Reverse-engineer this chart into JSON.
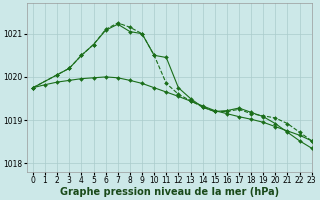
{
  "xlabel": "Graphe pression niveau de la mer (hPa)",
  "bg_color": "#cce8e8",
  "grid_color": "#aacccc",
  "line_color": "#1a6e1a",
  "ylim": [
    1017.8,
    1021.7
  ],
  "xlim": [
    -0.5,
    23
  ],
  "yticks": [
    1018,
    1019,
    1020,
    1021
  ],
  "xticks": [
    0,
    1,
    2,
    3,
    4,
    5,
    6,
    7,
    8,
    9,
    10,
    11,
    12,
    13,
    14,
    15,
    16,
    17,
    18,
    19,
    20,
    21,
    22,
    23
  ],
  "series": [
    {
      "x": [
        0,
        1,
        2,
        3,
        4,
        5,
        6,
        7,
        8,
        9,
        10,
        11,
        12,
        13,
        14,
        15,
        16,
        17,
        18,
        19,
        20,
        21,
        22,
        23
      ],
      "y": [
        1019.75,
        1019.82,
        1019.88,
        1019.92,
        1019.96,
        1019.98,
        1020.0,
        1019.98,
        1019.92,
        1019.85,
        1019.75,
        1019.65,
        1019.55,
        1019.44,
        1019.33,
        1019.22,
        1019.15,
        1019.08,
        1019.02,
        1018.95,
        1018.85,
        1018.75,
        1018.65,
        1018.52
      ],
      "style": "-",
      "marker": "D",
      "markersize": 2.0,
      "linewidth": 0.8
    },
    {
      "x": [
        0,
        2,
        3,
        4,
        5,
        6,
        7,
        8,
        9,
        10,
        11,
        12,
        13,
        14,
        15,
        16,
        17,
        18,
        19,
        20,
        21,
        22,
        23
      ],
      "y": [
        1019.75,
        1020.05,
        1020.2,
        1020.5,
        1020.75,
        1021.1,
        1021.25,
        1021.15,
        1021.0,
        1020.5,
        1019.85,
        1019.6,
        1019.45,
        1019.3,
        1019.2,
        1019.2,
        1019.25,
        1019.15,
        1019.1,
        1019.05,
        1018.92,
        1018.72,
        1018.52
      ],
      "style": "--",
      "marker": "D",
      "markersize": 2.0,
      "linewidth": 0.8
    },
    {
      "x": [
        0,
        2,
        3,
        4,
        5,
        6,
        7,
        8,
        9,
        10,
        11,
        12,
        13,
        14,
        15,
        16,
        17,
        18,
        19,
        20,
        21,
        22,
        23
      ],
      "y": [
        1019.75,
        1020.05,
        1020.2,
        1020.5,
        1020.75,
        1021.08,
        1021.22,
        1021.05,
        1021.0,
        1020.5,
        1020.45,
        1019.75,
        1019.5,
        1019.3,
        1019.2,
        1019.22,
        1019.28,
        1019.18,
        1019.08,
        1018.92,
        1018.72,
        1018.52,
        1018.35
      ],
      "style": "-",
      "marker": "D",
      "markersize": 2.0,
      "linewidth": 0.8
    }
  ],
  "tick_fontsize": 5.5,
  "label_fontsize": 7.0,
  "fig_width": 3.2,
  "fig_height": 2.0,
  "dpi": 100
}
